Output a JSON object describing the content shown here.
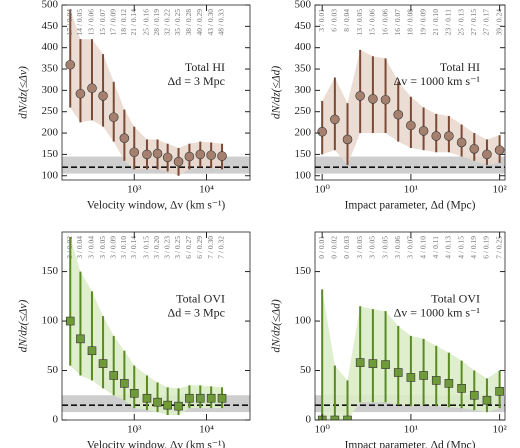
{
  "chart_data": [
    {
      "type": "scatter",
      "marker": "circle",
      "color": "#7b4a36",
      "marker_fill": "#a5806e",
      "band_color": "#ead9cf",
      "xlabel": "Velocity window, Δv (km s⁻¹)",
      "ylabel": "dN/dz(≤Δv)",
      "annotations": [
        "Total HI",
        "Δd = 3 Mpc"
      ],
      "log_x": true,
      "xlim": [
        100,
        40000
      ],
      "xticks": [
        {
          "value": 1000,
          "label": "10³"
        },
        {
          "value": 10000,
          "label": "10⁴"
        }
      ],
      "ylim": [
        90,
        500
      ],
      "yticks": [
        100,
        150,
        200,
        250,
        300,
        350,
        400,
        450,
        500
      ],
      "x": [
        130,
        180,
        260,
        370,
        520,
        730,
        1000,
        1500,
        2100,
        2900,
        4100,
        5800,
        8200,
        11600,
        16400
      ],
      "values": [
        360,
        292,
        305,
        287,
        237,
        188,
        155,
        150,
        152,
        143,
        133,
        145,
        150,
        148,
        146
      ],
      "lower": [
        260,
        225,
        230,
        215,
        180,
        135,
        115,
        115,
        115,
        110,
        100,
        115,
        120,
        118,
        115
      ],
      "upper": [
        490,
        420,
        420,
        385,
        320,
        255,
        215,
        185,
        185,
        175,
        165,
        175,
        180,
        178,
        175
      ],
      "count_labels": [
        "17 / 0.04",
        "14 / 0.05",
        "13 / 0.06",
        "15 / 0.07",
        "17 / 0.09",
        "18 / 0.12",
        "21 / 0.14",
        "25 / 0.16",
        "28 / 0.19",
        "32 / 0.22",
        "35 / 0.25",
        "38 / 0.28",
        "40 / 0.29",
        "43 / 0.30",
        "48 / 0.33"
      ],
      "reference": {
        "value": 120,
        "low": 105,
        "high": 145
      }
    },
    {
      "type": "scatter",
      "marker": "circle",
      "color": "#7b4a36",
      "marker_fill": "#a5806e",
      "band_color": "#ead9cf",
      "xlabel": "Impact parameter, Δd (Mpc)",
      "ylabel": "dN/dz(≤Δd)",
      "annotations": [
        "Total HI",
        "Δv = 1000 km s⁻¹"
      ],
      "log_x": true,
      "xlim": [
        0.83,
        115
      ],
      "xticks": [
        {
          "value": 1,
          "label": "10⁰"
        },
        {
          "value": 10,
          "label": "10¹"
        },
        {
          "value": 100,
          "label": "10²"
        }
      ],
      "ylim": [
        90,
        500
      ],
      "yticks": [
        100,
        150,
        200,
        250,
        300,
        350,
        400,
        450,
        500
      ],
      "x": [
        1,
        1.39,
        1.93,
        2.68,
        3.73,
        5.18,
        7.2,
        10,
        13.9,
        19.3,
        26.8,
        37.3,
        51.8,
        72,
        100
      ],
      "values": [
        203,
        232,
        185,
        287,
        280,
        278,
        243,
        218,
        205,
        193,
        193,
        178,
        163,
        150,
        160
      ],
      "lower": [
        150,
        160,
        125,
        200,
        200,
        200,
        180,
        165,
        160,
        155,
        155,
        145,
        135,
        125,
        130
      ],
      "upper": [
        275,
        330,
        270,
        395,
        380,
        375,
        320,
        285,
        260,
        245,
        240,
        220,
        200,
        185,
        195
      ],
      "count_labels": [
        "3 / 0.01",
        "6 / 0.03",
        "8 / 0.04",
        "13 / 0.05",
        "15 / 0.06",
        "16 / 0.06",
        "16 / 0.07",
        "18 / 0.08",
        "19 / 0.09",
        "21 / 0.10",
        "23 / 0.11",
        "25 / 0.13",
        "27 / 0.15",
        "27 / 0.17",
        "39 / 0.24"
      ],
      "reference": {
        "value": 120,
        "low": 105,
        "high": 145
      }
    },
    {
      "type": "scatter",
      "marker": "square",
      "color": "#5a8a22",
      "marker_fill": "#6f9a3a",
      "band_color": "#dcecc6",
      "xlabel": "Velocity window, Δv (km s⁻¹)",
      "ylabel": "dN/dz(≤Δv)",
      "annotations": [
        "Total OVI",
        "Δd = 3 Mpc"
      ],
      "log_x": true,
      "xlim": [
        100,
        40000
      ],
      "xticks": [
        {
          "value": 1000,
          "label": "10³"
        },
        {
          "value": 10000,
          "label": "10⁴"
        }
      ],
      "ylim": [
        0,
        190
      ],
      "yticks": [
        0,
        50,
        100,
        150
      ],
      "x": [
        130,
        180,
        260,
        370,
        520,
        730,
        1000,
        1500,
        2100,
        2900,
        4100,
        5800,
        8200,
        11600,
        16400
      ],
      "values": [
        100,
        82,
        70,
        57,
        45,
        37,
        27,
        22,
        18,
        15,
        14,
        22,
        22,
        22,
        22
      ],
      "lower": [
        55,
        45,
        40,
        32,
        25,
        20,
        12,
        10,
        8,
        5,
        5,
        12,
        12,
        12,
        12
      ],
      "upper": [
        185,
        150,
        130,
        105,
        85,
        70,
        55,
        45,
        38,
        33,
        32,
        35,
        35,
        34,
        33
      ],
      "count_labels": [
        "3 / 0.02",
        "3 / 0.04",
        "3 / 0.04",
        "3 / 0.05",
        "3 / 0.09",
        "3 / 0.10",
        "3 / 0.14",
        "3 / 0.15",
        "3 / 0.20",
        "3 / 0.23",
        "3 / 0.25",
        "6 / 0.27",
        "6 / 0.29",
        "7 / 0.30",
        "7 / 0.32"
      ],
      "reference": {
        "value": 15,
        "low": 8,
        "high": 25
      }
    },
    {
      "type": "scatter",
      "marker": "square",
      "color": "#5a8a22",
      "marker_fill": "#6f9a3a",
      "band_color": "#dcecc6",
      "xlabel": "Impact parameter, Δd (Mpc)",
      "ylabel": "dN/dz(≤Δd)",
      "annotations": [
        "Total OVI",
        "Δv = 1000 km s⁻¹"
      ],
      "log_x": true,
      "xlim": [
        0.83,
        115
      ],
      "xticks": [
        {
          "value": 1,
          "label": "10⁰"
        },
        {
          "value": 10,
          "label": "10¹"
        },
        {
          "value": 100,
          "label": "10²"
        }
      ],
      "ylim": [
        0,
        190
      ],
      "yticks": [
        0,
        50,
        100,
        150
      ],
      "x": [
        1,
        1.39,
        1.93,
        2.68,
        3.73,
        5.18,
        7.2,
        10,
        13.9,
        19.3,
        26.8,
        37.3,
        51.8,
        72,
        100
      ],
      "values": [
        0,
        0,
        0,
        58,
        57,
        56,
        48,
        43,
        45,
        40,
        37,
        32,
        25,
        20,
        29
      ],
      "lower": [
        0,
        0,
        0,
        18,
        18,
        18,
        15,
        14,
        15,
        14,
        13,
        12,
        10,
        8,
        12
      ],
      "upper": [
        132,
        55,
        40,
        115,
        112,
        110,
        95,
        85,
        82,
        75,
        68,
        60,
        50,
        42,
        50
      ],
      "count_labels": [
        "0 / 0.01",
        "0 / 0.02",
        "0 / 0.03",
        "3 / 0.05",
        "3 / 0.05",
        "3 / 0.05",
        "3 / 0.06",
        "3 / 0.07",
        "4 / 0.10",
        "4 / 0.11",
        "4 / 0.13",
        "4 / 0.15",
        "4 / 0.19",
        "6 / 0.19",
        "7 / 0.25"
      ],
      "reference": {
        "value": 15,
        "low": 8,
        "high": 25
      }
    }
  ]
}
